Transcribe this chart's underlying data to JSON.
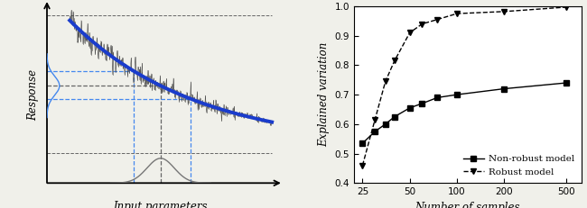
{
  "right_x": [
    25,
    30,
    35,
    40,
    50,
    60,
    75,
    100,
    200,
    500
  ],
  "non_robust": [
    0.535,
    0.575,
    0.6,
    0.625,
    0.655,
    0.67,
    0.69,
    0.7,
    0.72,
    0.74
  ],
  "robust": [
    0.46,
    0.615,
    0.745,
    0.815,
    0.91,
    0.94,
    0.955,
    0.975,
    0.982,
    0.997
  ],
  "right_xlabel": "Number of samples",
  "right_ylabel": "Explained variation",
  "right_ylim": [
    0.4,
    1.0
  ],
  "right_yticks": [
    0.4,
    0.5,
    0.6,
    0.7,
    0.8,
    0.9,
    1.0
  ],
  "left_xlabel": "Input parameters",
  "left_ylabel": "Response",
  "bg_color": "#f0f0ea",
  "plot_bg": "#ffffff",
  "blue_color": "#1a3ccc",
  "dashed_blue": "#4488ee",
  "dashed_dark": "#666666",
  "noise_color": "#444444",
  "gauss_color": "#777777"
}
